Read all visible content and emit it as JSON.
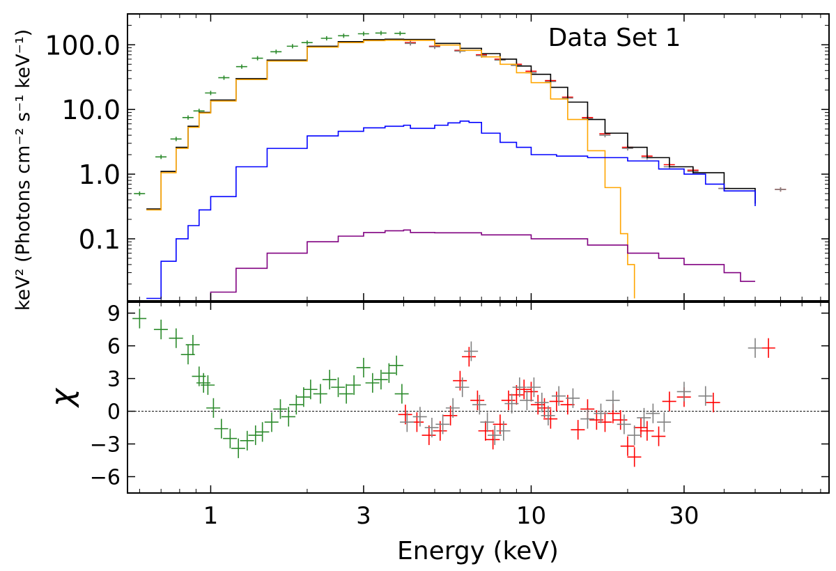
{
  "chart_data": {
    "type": "line",
    "annotation": "Data Set 1",
    "xlabel": "Energy (keV)",
    "xscale": "log",
    "xlim": [
      0.55,
      85
    ],
    "x_ticks": [
      1,
      3,
      10,
      30
    ],
    "x_tick_labels": [
      "1",
      "3",
      "10",
      "30"
    ],
    "panels": [
      {
        "id": "spectrum",
        "ylabel": "keV² (Photons cm⁻² s⁻¹ keV⁻¹)",
        "yscale": "log",
        "ylim": [
          0.011,
          300
        ],
        "y_ticks": [
          0.1,
          1,
          10,
          100
        ],
        "y_tick_labels": [
          "0.1",
          "1.0",
          "10.0",
          "100.0"
        ],
        "series": [
          {
            "color": "#2b8a2b",
            "style": "errorbars",
            "x": [
              0.6,
              0.7,
              0.78,
              0.85,
              0.92,
              1.0,
              1.1,
              1.25,
              1.4,
              1.6,
              1.8,
              2.0,
              2.3,
              2.6,
              3.0,
              3.4,
              3.9
            ],
            "y": [
              0.5,
              1.85,
              3.5,
              7.5,
              9.5,
              18,
              31,
              46,
              62,
              78,
              95,
              108,
              126,
              138,
              148,
              152,
              150
            ]
          },
          {
            "color": "#ff0000",
            "style": "errorbars",
            "x": [
              4.2,
              5,
              6,
              7,
              8,
              9,
              10,
              11.5,
              13,
              15,
              17,
              20,
              23,
              27,
              32,
              40,
              60
            ],
            "y": [
              108,
              95,
              82,
              70,
              60,
              50,
              39,
              28,
              15.5,
              7.5,
              4.2,
              2.6,
              1.9,
              1.4,
              1.15,
              0.6,
              0.58
            ]
          },
          {
            "color": "#808080",
            "style": "errorbars",
            "x": [
              4.2,
              5,
              6,
              7,
              8,
              9,
              10,
              11.5,
              13,
              15,
              17,
              20,
              23,
              27,
              32,
              40,
              60
            ],
            "y": [
              105,
              93,
              80,
              68,
              58,
              48,
              37,
              27,
              15,
              7.2,
              4.0,
              2.5,
              1.8,
              1.3,
              1.1,
              0.6,
              0.58
            ]
          },
          {
            "color": "#000000",
            "style": "step",
            "x": [
              0.63,
              0.7,
              0.78,
              0.85,
              0.92,
              1.0,
              1.2,
              1.5,
              2.0,
              2.5,
              3.0,
              3.5,
              4.0,
              5,
              6,
              7,
              8,
              9,
              10,
              11.5,
              13,
              15,
              17,
              20,
              23,
              27,
              32,
              40,
              50
            ],
            "y": [
              0.29,
              1.1,
              2.6,
              5.5,
              9,
              14,
              30,
              58,
              95,
              112,
              120,
              122,
              121,
              105,
              88,
              73,
              60,
              47,
              35,
              22,
              13,
              7,
              4.3,
              2.6,
              1.8,
              1.3,
              1.05,
              0.6,
              0.35
            ]
          },
          {
            "color": "#ffa500",
            "style": "step",
            "x": [
              0.63,
              0.7,
              0.78,
              0.85,
              0.92,
              1.0,
              1.2,
              1.5,
              2.0,
              2.5,
              3.0,
              3.5,
              4.0,
              5,
              6,
              7,
              8,
              9,
              10,
              11.5,
              13,
              15,
              17,
              19,
              20,
              21
            ],
            "y": [
              0.28,
              1.05,
              2.5,
              5.3,
              8.8,
              13.5,
              29,
              56,
              92,
              108,
              116,
              118,
              117,
              99,
              82,
              65,
              50,
              37,
              26,
              14.5,
              7,
              2.3,
              0.62,
              0.12,
              0.04,
              0.012
            ]
          },
          {
            "color": "#0000ff",
            "style": "step",
            "x": [
              0.63,
              0.7,
              0.78,
              0.85,
              0.92,
              1.0,
              1.2,
              1.5,
              2.0,
              2.5,
              3.0,
              3.5,
              4.0,
              4.2,
              5,
              5.5,
              6.0,
              6.4,
              7,
              8,
              9,
              10,
              12,
              15,
              20,
              25,
              30,
              35,
              40,
              50
            ],
            "y": [
              0.012,
              0.045,
              0.1,
              0.16,
              0.28,
              0.45,
              1.3,
              2.5,
              3.9,
              4.6,
              5.2,
              5.5,
              5.7,
              5.1,
              5.7,
              6.2,
              6.6,
              6.3,
              4.3,
              3.1,
              2.6,
              2.0,
              1.9,
              1.8,
              1.6,
              1.2,
              1.0,
              0.7,
              0.55,
              0.32
            ]
          },
          {
            "color": "#800080",
            "style": "step",
            "x": [
              0.95,
              1.0,
              1.2,
              1.5,
              2.0,
              2.5,
              3.0,
              3.5,
              4.0,
              4.2,
              5,
              7,
              10,
              15,
              20,
              25,
              30,
              40,
              45,
              50
            ],
            "y": [
              0.011,
              0.015,
              0.035,
              0.06,
              0.09,
              0.11,
              0.125,
              0.133,
              0.137,
              0.125,
              0.124,
              0.115,
              0.1,
              0.08,
              0.06,
              0.05,
              0.04,
              0.03,
              0.022,
              0.022
            ]
          }
        ]
      },
      {
        "id": "residuals",
        "ylabel": "χ",
        "yscale": "linear",
        "ylim": [
          -7.5,
          10
        ],
        "y_ticks": [
          -6,
          -3,
          0,
          3,
          6,
          9
        ],
        "y_tick_labels": [
          "−6",
          "−3",
          "0",
          "3",
          "6",
          "9"
        ],
        "zero_line": true,
        "series": [
          {
            "color": "#2b8a2b",
            "style": "errorbars",
            "x": [
              0.6,
              0.7,
              0.78,
              0.85,
              0.88,
              0.92,
              0.95,
              0.98,
              1.02,
              1.08,
              1.15,
              1.22,
              1.3,
              1.38,
              1.45,
              1.55,
              1.65,
              1.75,
              1.85,
              1.95,
              2.05,
              2.2,
              2.35,
              2.5,
              2.65,
              2.8,
              3.0,
              3.2,
              3.4,
              3.6,
              3.8,
              3.95
            ],
            "y": [
              8.5,
              7.5,
              6.7,
              5.2,
              6.1,
              3.2,
              2.6,
              2.4,
              0.3,
              -1.6,
              -2.5,
              -3.4,
              -2.7,
              -2.2,
              -1.9,
              -1.0,
              0.2,
              -0.5,
              0.6,
              1.3,
              2.0,
              1.6,
              2.9,
              2.2,
              1.6,
              2.4,
              4.0,
              2.6,
              2.9,
              3.5,
              4.2,
              1.6
            ]
          },
          {
            "color": "#ff0000",
            "style": "errorbars",
            "x": [
              4.05,
              4.4,
              4.8,
              5.2,
              5.6,
              6.0,
              6.4,
              6.8,
              7.2,
              7.6,
              8.0,
              8.5,
              9.0,
              9.5,
              10,
              10.5,
              11,
              11.5,
              12,
              13,
              14,
              15,
              16,
              17,
              18,
              19,
              20,
              21,
              22,
              23,
              25,
              27,
              30,
              37,
              55
            ],
            "y": [
              -0.3,
              -1.0,
              -2.2,
              -1.8,
              -0.4,
              2.8,
              5.0,
              1.0,
              -1.8,
              -2.6,
              -1.2,
              1.0,
              1.5,
              2.0,
              1.8,
              0.6,
              0.3,
              -0.7,
              0.9,
              0.6,
              -1.7,
              0.2,
              -0.8,
              -1.0,
              -0.2,
              -0.8,
              -3.2,
              -4.2,
              -1.5,
              -1.8,
              -2.3,
              0.9,
              1.3,
              0.8,
              5.8
            ]
          },
          {
            "color": "#808080",
            "style": "errorbars",
            "x": [
              4.1,
              4.5,
              4.9,
              5.3,
              5.7,
              6.1,
              6.5,
              6.9,
              7.3,
              7.7,
              8.2,
              8.7,
              9.2,
              9.7,
              10.2,
              10.8,
              11.3,
              12.2,
              13.5,
              15,
              16.5,
              18,
              19.5,
              21,
              22.5,
              24,
              26,
              30,
              35,
              50
            ],
            "y": [
              -1.0,
              -0.5,
              -1.5,
              -1.2,
              0.3,
              2.2,
              5.5,
              0.6,
              -1.0,
              -2.2,
              -1.8,
              0.7,
              2.2,
              1.0,
              2.2,
              0.8,
              -0.4,
              1.4,
              1.2,
              -0.7,
              -0.2,
              1.0,
              -1.2,
              -2.2,
              -0.6,
              -0.2,
              -1.0,
              1.8,
              1.4,
              5.8
            ]
          }
        ]
      }
    ]
  }
}
